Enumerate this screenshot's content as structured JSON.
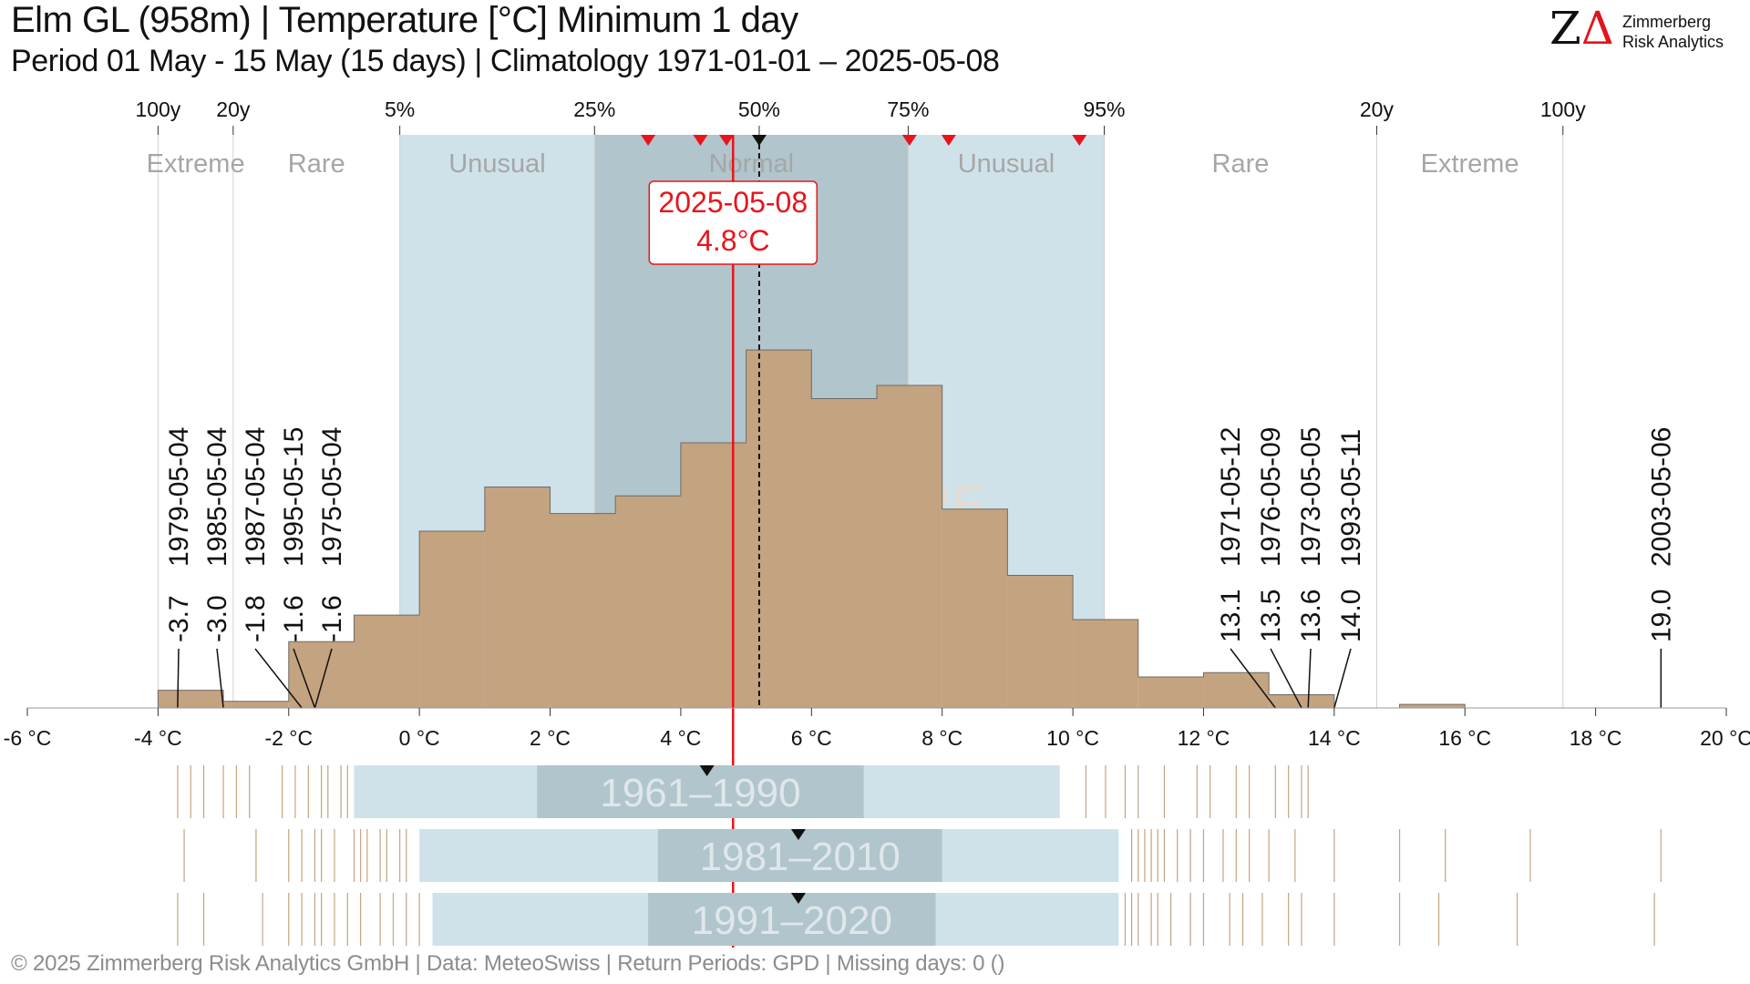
{
  "header": {
    "title": "Elm  GL (958m) | Temperature [°C] Minimum 1 day",
    "subtitle": "Period 01 May - 15 May (15 days) | Climatology 1971-01-01 – 2025-05-08"
  },
  "logo": {
    "mark": "ZΔ",
    "line1": "Zimmerberg",
    "line2": "Risk Analytics"
  },
  "footer": "©  2025 Zimmerberg Risk Analytics GmbH | Data: MeteoSwiss | Return Periods: GPD | Missing days: 0 ()",
  "colors": {
    "histogram": "#c4a380",
    "histogram_edge": "#6e6a64",
    "normal_band": "#b1c5cc",
    "unusual_band": "#cfe2ea",
    "current": "#e8141b",
    "median": "#111111",
    "category_text": "#a6a6a6",
    "period_text": "#e3dcd5",
    "rug": "#c4a380"
  },
  "chart_data": {
    "type": "bar",
    "title": "Temperature [°C] Minimum 1 day",
    "xlabel": "°C",
    "xlim": [
      -6,
      20
    ],
    "x_ticks": [
      -6,
      -4,
      -2,
      0,
      2,
      4,
      6,
      8,
      10,
      12,
      14,
      16,
      18,
      20
    ],
    "x_tick_labels": [
      "-6 °C",
      "-4 °C",
      "-2 °C",
      "0 °C",
      "2 °C",
      "4 °C",
      "6 °C",
      "8 °C",
      "10 °C",
      "12 °C",
      "14 °C",
      "16 °C",
      "18 °C",
      "20 °C"
    ],
    "histogram_period": "1971–2025",
    "histogram": {
      "bin_edges": [
        -4,
        -3,
        -2,
        -1,
        0,
        1,
        2,
        3,
        4,
        5,
        6,
        7,
        8,
        9,
        10,
        11,
        12,
        13,
        14,
        15,
        16,
        17
      ],
      "counts": [
        4,
        1.5,
        15,
        21,
        40,
        50,
        44,
        48,
        60,
        81,
        70,
        73,
        45,
        30,
        20,
        7,
        8,
        3,
        0,
        0.8,
        0,
        0
      ]
    },
    "return_period_axis": [
      {
        "label": "100y",
        "x": -4.0
      },
      {
        "label": "20y",
        "x": -2.85
      },
      {
        "label": "5%",
        "x": -0.3
      },
      {
        "label": "25%",
        "x": 2.68
      },
      {
        "label": "50%",
        "x": 5.2
      },
      {
        "label": "75%",
        "x": 7.48
      },
      {
        "label": "95%",
        "x": 10.48
      },
      {
        "label": "20y",
        "x": 14.65
      },
      {
        "label": "100y",
        "x": 17.5
      }
    ],
    "categories": [
      {
        "label": "Extreme",
        "from": -4.0,
        "to": -2.85
      },
      {
        "label": "Rare",
        "from": -2.85,
        "to": -0.3
      },
      {
        "label": "Unusual",
        "from": -0.3,
        "to": 2.68
      },
      {
        "label": "Normal",
        "from": 2.68,
        "to": 7.48
      },
      {
        "label": "Unusual",
        "from": 7.48,
        "to": 10.48
      },
      {
        "label": "Rare",
        "from": 10.48,
        "to": 14.65
      },
      {
        "label": "Extreme",
        "from": 14.65,
        "to": 17.5
      }
    ],
    "current": {
      "date": "2025-05-08",
      "value": 4.8,
      "label": "4.8°C"
    },
    "median": 5.2,
    "recent_markers": [
      3.5,
      4.3,
      4.7,
      7.5,
      8.1,
      10.1
    ],
    "extremes_low": [
      {
        "date": "1979-05-04",
        "value": -3.7,
        "label": "-3.7"
      },
      {
        "date": "1985-05-04",
        "value": -3.0,
        "label": "-3.0"
      },
      {
        "date": "1987-05-04",
        "value": -1.8,
        "label": "-1.8"
      },
      {
        "date": "1995-05-15",
        "value": -1.6,
        "label": "-1.6"
      },
      {
        "date": "1975-05-04",
        "value": -1.6,
        "label": "-1.6"
      }
    ],
    "extremes_high": [
      {
        "date": "1971-05-12",
        "value": 13.1,
        "label": "13.1"
      },
      {
        "date": "1976-05-09",
        "value": 13.5,
        "label": "13.5"
      },
      {
        "date": "1973-05-05",
        "value": 13.6,
        "label": "13.6"
      },
      {
        "date": "1993-05-11",
        "value": 14.0,
        "label": "14.0"
      },
      {
        "date": "2003-05-06",
        "value": 19.0,
        "label": "19.0"
      }
    ],
    "periods": [
      {
        "label": "1961–1990",
        "p5": -1.0,
        "p25": 1.8,
        "p75": 6.8,
        "p95": 9.8,
        "median": 4.4,
        "rug": [
          -3.7,
          -3.5,
          -3.3,
          -3.0,
          -2.8,
          -2.6,
          -2.1,
          -1.9,
          -1.7,
          -1.5,
          -1.4,
          -1.2,
          -1.1,
          10.2,
          10.5,
          10.8,
          11.0,
          11.4,
          11.9,
          12.1,
          12.5,
          12.7,
          13.1,
          13.3,
          13.5,
          13.6
        ]
      },
      {
        "label": "1981–2010",
        "p5": 0.0,
        "p25": 3.65,
        "p75": 8.0,
        "p95": 10.7,
        "median": 5.8,
        "rug": [
          -3.6,
          -2.5,
          -2.0,
          -1.8,
          -1.6,
          -1.5,
          -1.3,
          -1.0,
          -0.9,
          -0.8,
          -0.6,
          -0.5,
          -0.3,
          -0.2,
          10.9,
          11.0,
          11.1,
          11.2,
          11.3,
          11.4,
          11.6,
          11.8,
          12.0,
          12.3,
          12.5,
          12.7,
          13.0,
          13.4,
          14.0,
          15.0,
          15.7,
          17.0,
          19.0
        ]
      },
      {
        "label": "1991–2020",
        "p5": 0.2,
        "p25": 3.5,
        "p75": 7.9,
        "p95": 10.7,
        "median": 5.8,
        "rug": [
          -3.7,
          -3.3,
          -2.4,
          -2.0,
          -1.8,
          -1.6,
          -1.5,
          -1.3,
          -1.1,
          -0.9,
          -0.6,
          -0.4,
          -0.2,
          0.0,
          10.8,
          10.9,
          11.0,
          11.2,
          11.3,
          11.5,
          11.8,
          12.0,
          12.4,
          12.6,
          12.9,
          13.3,
          13.5,
          14.0,
          15.0,
          15.6,
          16.8,
          18.9
        ]
      }
    ]
  }
}
